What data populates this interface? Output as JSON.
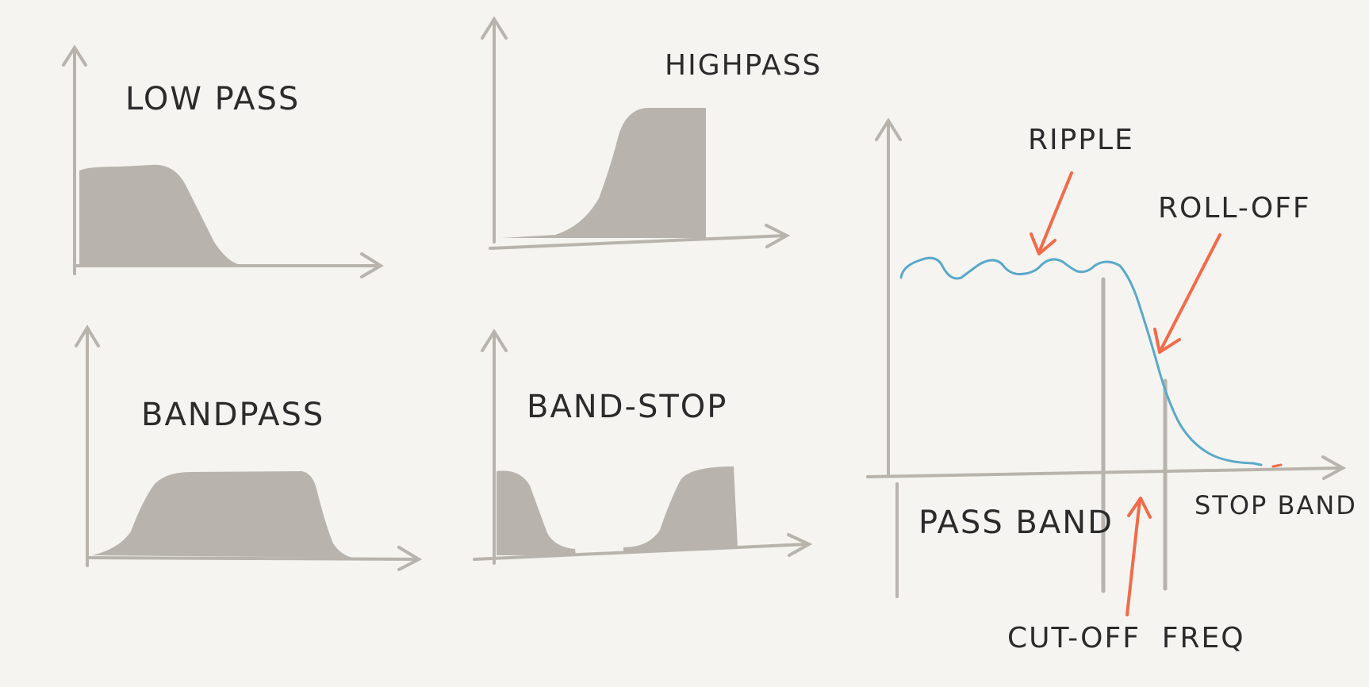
{
  "labels": {
    "lowpass": "LOW PASS",
    "highpass": "HIGHPASS",
    "bandpass": "BANDPASS",
    "bandstop": "BAND-STOP",
    "ripple": "RIPPLE",
    "rolloff": "ROLL-OFF",
    "passband": "PASS BAND",
    "stopband": "STOP BAND",
    "cutoff": "CUT-OFF  FREQ"
  },
  "colors": {
    "background": "#f5f4f0",
    "axis": "#b8b4ad",
    "fill": "#b8b4ad",
    "response_curve": "#5aa9c9",
    "annotation_arrow": "#f26b4a",
    "text": "#2b2b2b"
  }
}
